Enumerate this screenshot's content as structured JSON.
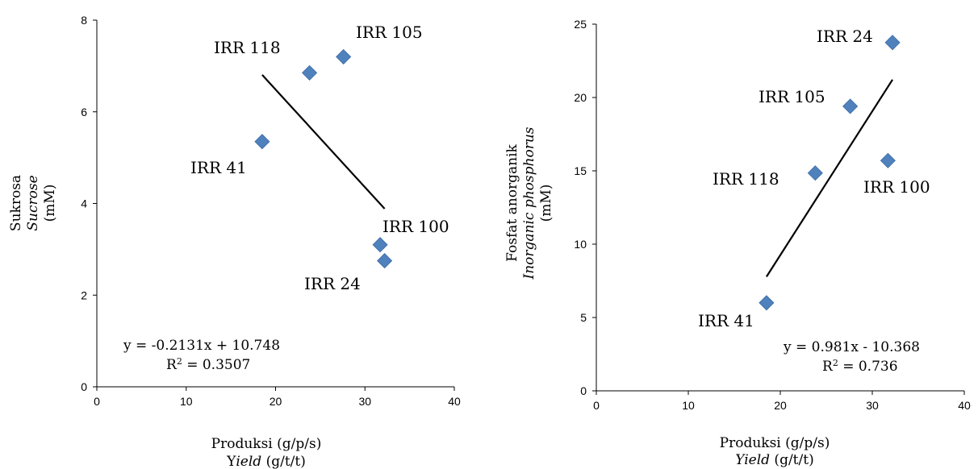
{
  "chart_data": [
    {
      "type": "scatter",
      "xlabel": "Produksi (g/p/s)",
      "xlabel_en_prefix": "Y",
      "xlabel_en_italic": "ield",
      "xlabel_en_suffix": " (g/t/t)",
      "ylabel_line1": "Sukrosa",
      "ylabel_line2": "Sucrose",
      "ylabel_line3": "(mM)",
      "xlim": [
        0,
        40
      ],
      "ylim": [
        0,
        8
      ],
      "xticks": [
        0,
        10,
        20,
        30,
        40
      ],
      "yticks": [
        0,
        2,
        4,
        6,
        8
      ],
      "points": [
        {
          "label": "IRR 41",
          "x": 18.5,
          "y": 5.35
        },
        {
          "label": "IRR 118",
          "x": 23.8,
          "y": 6.85
        },
        {
          "label": "IRR 105",
          "x": 27.6,
          "y": 7.2
        },
        {
          "label": "IRR 100",
          "x": 31.7,
          "y": 3.1
        },
        {
          "label": "IRR 24",
          "x": 32.2,
          "y": 2.75
        }
      ],
      "trendline": {
        "slope": -0.2131,
        "intercept": 10.748,
        "x_range": [
          18.5,
          32.2
        ]
      },
      "equation": "y = -0.2131x + 10.748",
      "r2_prefix": "R",
      "r2_sup": "2",
      "r2_value": " = 0.3507"
    },
    {
      "type": "scatter",
      "xlabel": "Produksi (g/p/s)",
      "xlabel_en_italic": "Yield",
      "xlabel_en_suffix": " (g/t/t)",
      "ylabel_line1": "Fosfat anorganik",
      "ylabel_line2": "Inorganic phosphorus",
      "ylabel_line3": "(mM)",
      "xlim": [
        0,
        40
      ],
      "ylim": [
        0,
        25
      ],
      "xticks": [
        0,
        10,
        20,
        30,
        40
      ],
      "yticks": [
        0,
        5,
        10,
        15,
        20,
        25
      ],
      "points": [
        {
          "label": "IRR 41",
          "x": 18.5,
          "y": 6.0
        },
        {
          "label": "IRR 118",
          "x": 23.8,
          "y": 14.85
        },
        {
          "label": "IRR 105",
          "x": 27.6,
          "y": 19.4
        },
        {
          "label": "IRR 100",
          "x": 31.7,
          "y": 15.7
        },
        {
          "label": "IRR 24",
          "x": 32.2,
          "y": 23.75
        }
      ],
      "trendline": {
        "slope": 0.981,
        "intercept": -10.368,
        "x_range": [
          18.5,
          32.2
        ]
      },
      "equation": "y = 0.981x - 10.368",
      "r2_prefix": "R",
      "r2_sup": "2",
      "r2_value": " = 0.736"
    }
  ]
}
